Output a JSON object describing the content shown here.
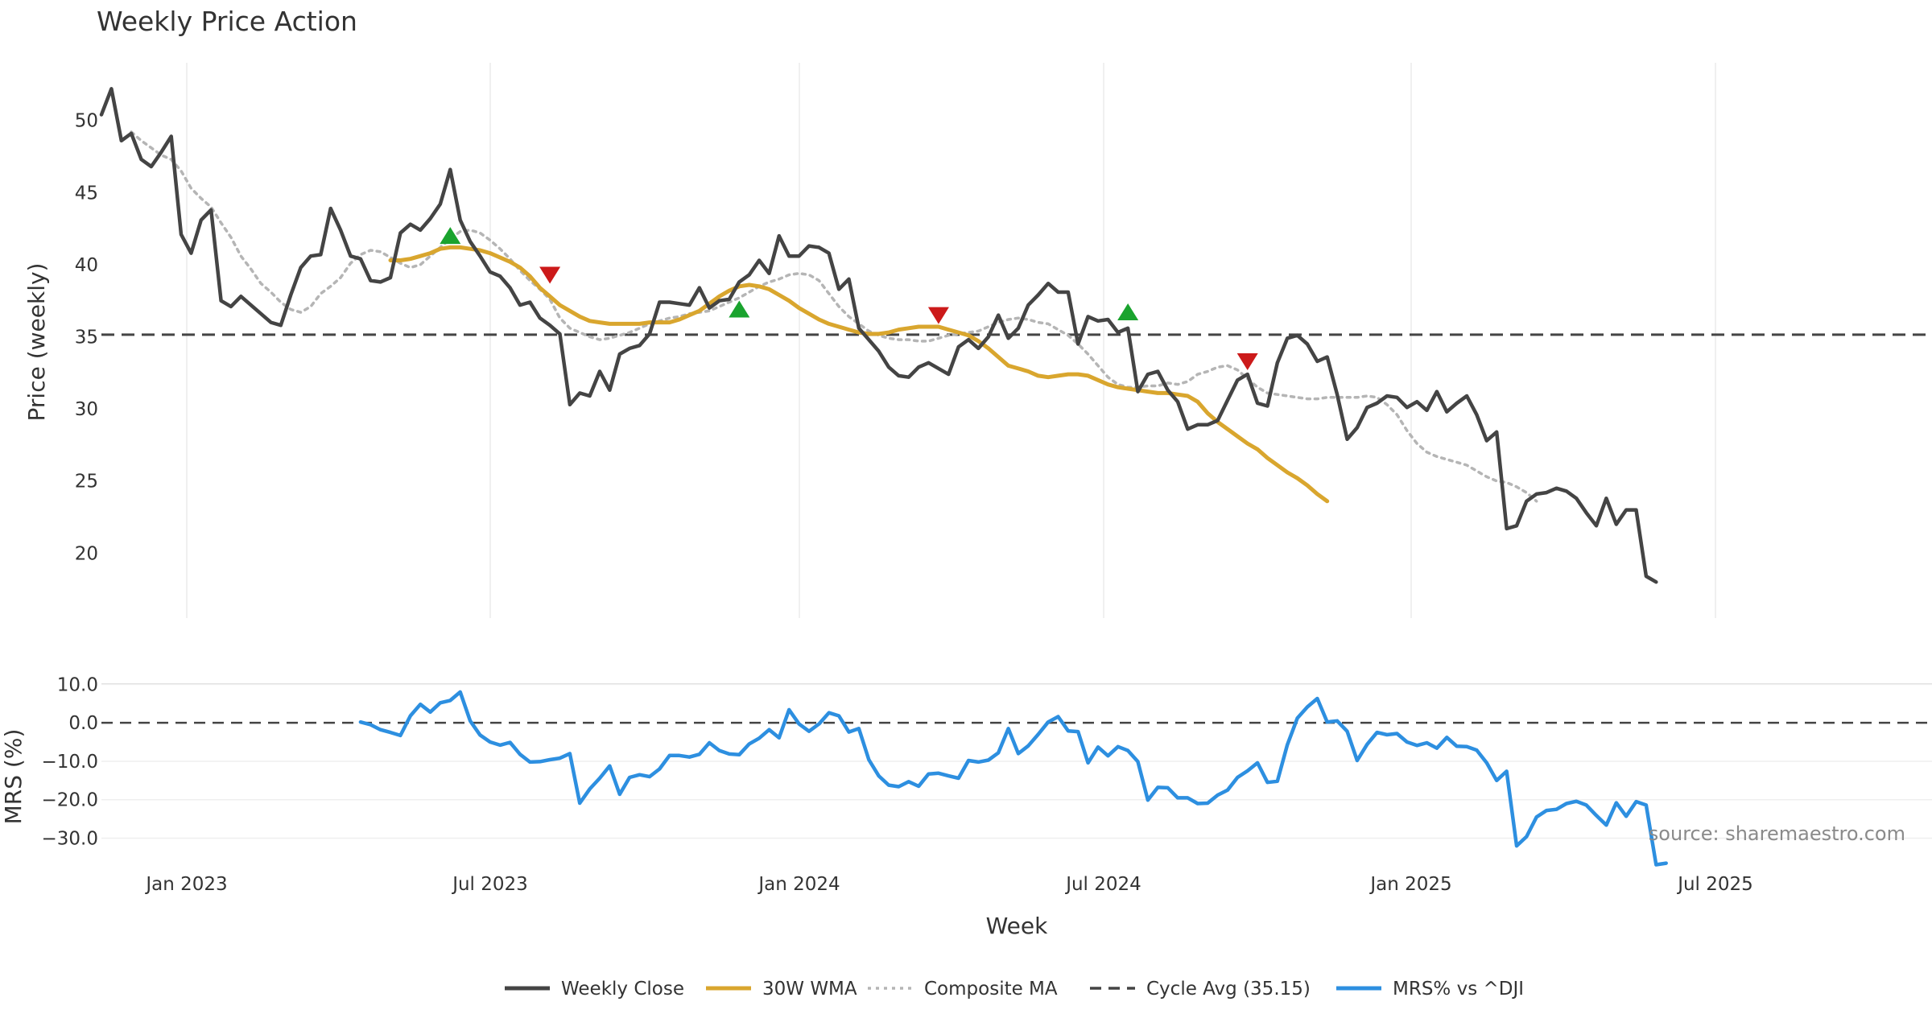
{
  "chart_data": [
    {
      "type": "line",
      "title": "Weekly Price Action",
      "xlabel": "",
      "ylabel": "Price (weekly)",
      "ylim": [
        15.5,
        54
      ],
      "grid": "vertical",
      "x_tick_labels": [
        "Jan 2023",
        "Jul 2023",
        "Jan 2024",
        "Jul 2024",
        "Jan 2025",
        "Jul 2025"
      ],
      "y_ticks": [
        20,
        25,
        30,
        35,
        40,
        45,
        50
      ],
      "y_tick_labels": [
        "20",
        "25",
        "30",
        "35",
        "40",
        "45",
        "50"
      ],
      "reference_line": {
        "name": "Cycle Avg (35.15)",
        "value": 35.15
      },
      "series": [
        {
          "name": "Weekly Close",
          "color": "#444444",
          "start_week": 0,
          "values": [
            50.4,
            52.2,
            48.6,
            49.1,
            47.3,
            46.8,
            47.8,
            48.9,
            42.1,
            40.8,
            43.1,
            43.8,
            37.5,
            37.1,
            37.8,
            37.2,
            36.6,
            36.0,
            35.8,
            37.9,
            39.8,
            40.6,
            40.7,
            43.9,
            42.4,
            40.6,
            40.4,
            38.9,
            38.8,
            39.1,
            42.2,
            42.8,
            42.4,
            43.2,
            44.2,
            46.6,
            43.1,
            41.6,
            40.6,
            39.5,
            39.2,
            38.4,
            37.2,
            37.4,
            36.3,
            35.8,
            35.2,
            30.3,
            31.1,
            30.9,
            32.6,
            31.3,
            33.8,
            34.2,
            34.4,
            35.2,
            37.4,
            37.4,
            37.3,
            37.2,
            38.4,
            37.0,
            37.5,
            37.6,
            38.8,
            39.3,
            40.3,
            39.4,
            42.0,
            40.6,
            40.6,
            41.3,
            41.2,
            40.8,
            38.3,
            39.0,
            35.6,
            34.8,
            34.0,
            32.9,
            32.3,
            32.2,
            32.9,
            33.2,
            32.8,
            32.4,
            34.3,
            34.8,
            34.2,
            35.0,
            36.5,
            34.9,
            35.6,
            37.2,
            37.9,
            38.7,
            38.1,
            38.1,
            34.5,
            36.4,
            36.1,
            36.2,
            35.3,
            35.6,
            31.2,
            32.4,
            32.6,
            31.3,
            30.5,
            28.6,
            28.9,
            28.9,
            29.2,
            30.6,
            32.0,
            32.4,
            30.4,
            30.2,
            33.2,
            34.9,
            35.1,
            34.5,
            33.3,
            33.6,
            31.0,
            27.9,
            28.7,
            30.1,
            30.4,
            30.9,
            30.8,
            30.1,
            30.5,
            29.9,
            31.2,
            29.8,
            30.4,
            30.9,
            29.6,
            27.8,
            28.4,
            21.7,
            21.9,
            23.6,
            24.1,
            24.2,
            24.5,
            24.3,
            23.8,
            22.8,
            21.9,
            23.8,
            22.0,
            23.0,
            23.0,
            18.4,
            18.0
          ]
        },
        {
          "name": "30W WMA",
          "color": "#d9a62e",
          "start_week": 29,
          "values": [
            40.3,
            40.3,
            40.4,
            40.6,
            40.8,
            41.1,
            41.2,
            41.2,
            41.1,
            41.0,
            40.8,
            40.5,
            40.2,
            39.8,
            39.2,
            38.4,
            37.8,
            37.2,
            36.8,
            36.4,
            36.1,
            36.0,
            35.9,
            35.9,
            35.9,
            35.9,
            36.0,
            36.0,
            36.0,
            36.2,
            36.5,
            36.8,
            37.3,
            37.8,
            38.2,
            38.5,
            38.6,
            38.5,
            38.3,
            37.9,
            37.5,
            37.0,
            36.6,
            36.2,
            35.9,
            35.7,
            35.5,
            35.3,
            35.2,
            35.2,
            35.3,
            35.5,
            35.6,
            35.7,
            35.7,
            35.7,
            35.5,
            35.3,
            35.1,
            34.7,
            34.2,
            33.6,
            33.0,
            32.8,
            32.6,
            32.3,
            32.2,
            32.3,
            32.4,
            32.4,
            32.3,
            32.0,
            31.7,
            31.5,
            31.4,
            31.3,
            31.2,
            31.1,
            31.1,
            31.0,
            30.9,
            30.5,
            29.7,
            29.1,
            28.6,
            28.1,
            27.6,
            27.2,
            26.6,
            26.1,
            25.6,
            25.2,
            24.7,
            24.1,
            23.6
          ]
        },
        {
          "name": "Composite MA",
          "color": "#b5b5b5",
          "start_week": 3,
          "values": [
            49.2,
            48.6,
            48.1,
            47.6,
            47.3,
            46.5,
            45.3,
            44.6,
            44.0,
            42.9,
            41.9,
            40.6,
            39.7,
            38.7,
            38.1,
            37.4,
            36.9,
            36.7,
            37.1,
            38.0,
            38.5,
            39.1,
            40.1,
            40.7,
            41.0,
            40.9,
            40.5,
            40.1,
            39.8,
            40.0,
            40.6,
            41.2,
            41.8,
            42.3,
            42.4,
            42.2,
            41.7,
            41.1,
            40.4,
            39.6,
            38.9,
            38.3,
            37.6,
            36.3,
            35.6,
            35.3,
            35.0,
            34.8,
            34.9,
            35.1,
            35.3,
            35.6,
            35.9,
            36.1,
            36.3,
            36.4,
            36.6,
            36.7,
            36.8,
            37.1,
            37.4,
            37.7,
            38.1,
            38.5,
            38.8,
            39.0,
            39.3,
            39.4,
            39.3,
            38.9,
            38.0,
            37.1,
            36.4,
            35.9,
            35.4,
            35.1,
            34.9,
            34.8,
            34.8,
            34.7,
            34.7,
            34.9,
            35.1,
            35.2,
            35.3,
            35.4,
            35.7,
            36.0,
            36.2,
            36.3,
            36.2,
            36.0,
            35.9,
            35.5,
            35.1,
            34.5,
            33.8,
            33.0,
            32.2,
            31.7,
            31.5,
            31.5,
            31.6,
            31.6,
            31.8,
            31.7,
            31.9,
            32.4,
            32.6,
            32.9,
            33.0,
            32.7,
            32.1,
            31.5,
            31.1,
            31.0,
            30.9,
            30.8,
            30.7,
            30.7,
            30.8,
            30.8,
            30.8,
            30.8,
            30.9,
            30.8,
            30.3,
            29.6,
            28.5,
            27.6,
            27.0,
            26.7,
            26.5,
            26.3,
            26.1,
            25.7,
            25.3,
            25.0,
            24.9,
            24.6,
            24.2,
            23.6
          ]
        }
      ],
      "buy_signals": [
        {
          "week": 35,
          "price": 42.0
        },
        {
          "week": 64,
          "price": 36.9
        },
        {
          "week": 103,
          "price": 36.7
        }
      ],
      "sell_signals": [
        {
          "week": 45,
          "price": 39.3
        },
        {
          "week": 84,
          "price": 36.5
        },
        {
          "week": 115,
          "price": 33.3
        }
      ],
      "marker_colors": {
        "buy": "#1aa32e",
        "sell": "#cc1a1a"
      }
    },
    {
      "type": "line",
      "title": "",
      "xlabel": "Week",
      "ylabel": "MRS (%)",
      "ylim": [
        -37,
        13
      ],
      "y_ticks": [
        10,
        0,
        -10,
        -20,
        -30
      ],
      "y_tick_labels": [
        "10.0",
        "0.0",
        "−10.0",
        "−20.0",
        "−30.0"
      ],
      "x_tick_labels": [
        "Jan 2023",
        "Jul 2023",
        "Jan 2024",
        "Jul 2024",
        "Jan 2025",
        "Jul 2025"
      ],
      "reference_line": {
        "value": 0
      },
      "series": [
        {
          "name": "MRS% vs ^DJI",
          "color": "#2d8fe0",
          "start_week": 26,
          "values": [
            0.2,
            -0.5,
            -1.8,
            -2.5,
            -3.3,
            1.8,
            4.8,
            2.8,
            5.2,
            5.8,
            8.0,
            0.5,
            -3.2,
            -5.0,
            -5.8,
            -5.1,
            -8.2,
            -10.2,
            -10.1,
            -9.6,
            -9.2,
            -8.0,
            -20.9,
            -17.2,
            -14.4,
            -11.2,
            -18.6,
            -14.2,
            -13.5,
            -14.0,
            -12.0,
            -8.5,
            -8.5,
            -8.9,
            -8.2,
            -5.2,
            -7.2,
            -8.1,
            -8.3,
            -5.5,
            -4.0,
            -1.8,
            -3.9,
            3.4,
            -0.3,
            -2.2,
            -0.3,
            2.6,
            1.8,
            -2.4,
            -1.5,
            -9.6,
            -13.8,
            -16.2,
            -16.6,
            -15.3,
            -16.5,
            -13.3,
            -13.1,
            -13.8,
            -14.4,
            -9.8,
            -10.2,
            -9.7,
            -7.8,
            -1.5,
            -8.0,
            -6.0,
            -3.0,
            0.2,
            1.6,
            -2.1,
            -2.3,
            -10.4,
            -6.3,
            -8.6,
            -6.2,
            -7.2,
            -10.1,
            -20.1,
            -16.8,
            -16.9,
            -19.5,
            -19.5,
            -21.0,
            -20.9,
            -18.8,
            -17.5,
            -14.2,
            -12.5,
            -10.4,
            -15.5,
            -15.2,
            -5.7,
            1.2,
            4.1,
            6.3,
            0.2,
            0.5,
            -2.2,
            -9.8,
            -5.6,
            -2.5,
            -3.1,
            -2.8,
            -5.0,
            -5.9,
            -5.2,
            -6.6,
            -3.8,
            -6.1,
            -6.2,
            -7.1,
            -10.4,
            -15.0,
            -12.6,
            -32.0,
            -29.6,
            -24.5,
            -22.8,
            -22.5,
            -21.0,
            -20.4,
            -21.4,
            -24.1,
            -26.6,
            -20.8,
            -24.3,
            -20.5,
            -21.4,
            -36.9,
            -36.5
          ]
        }
      ],
      "annotation": "source: sharemaestro.com"
    }
  ],
  "legend": [
    {
      "label": "Weekly Close",
      "color": "#444444",
      "style": "solid"
    },
    {
      "label": "30W WMA",
      "color": "#d9a62e",
      "style": "solid"
    },
    {
      "label": "Composite MA",
      "color": "#b5b5b5",
      "style": "dotted"
    },
    {
      "label": "Cycle Avg (35.15)",
      "color": "#444444",
      "style": "dashed"
    },
    {
      "label": "MRS% vs ^DJI",
      "color": "#2d8fe0",
      "style": "solid"
    }
  ]
}
